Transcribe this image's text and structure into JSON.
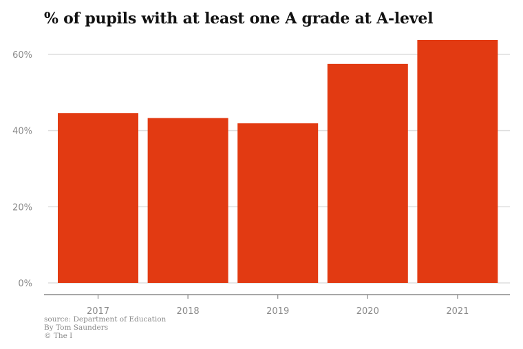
{
  "chart_data": {
    "type": "bar",
    "title": "% of pupils with at least one A grade at A-level",
    "categories": [
      "2017",
      "2018",
      "2019",
      "2020",
      "2021"
    ],
    "values": [
      44.6,
      43.3,
      41.9,
      57.5,
      63.8
    ],
    "ylim": [
      0,
      65
    ],
    "yticks": [
      0,
      20,
      40,
      60
    ],
    "ytick_format": "%",
    "grid": true,
    "bar_color": "#e23a12"
  },
  "footer": {
    "source": "source: Department of Education",
    "byline": "By Tom Saunders",
    "copyright": "© The I"
  }
}
